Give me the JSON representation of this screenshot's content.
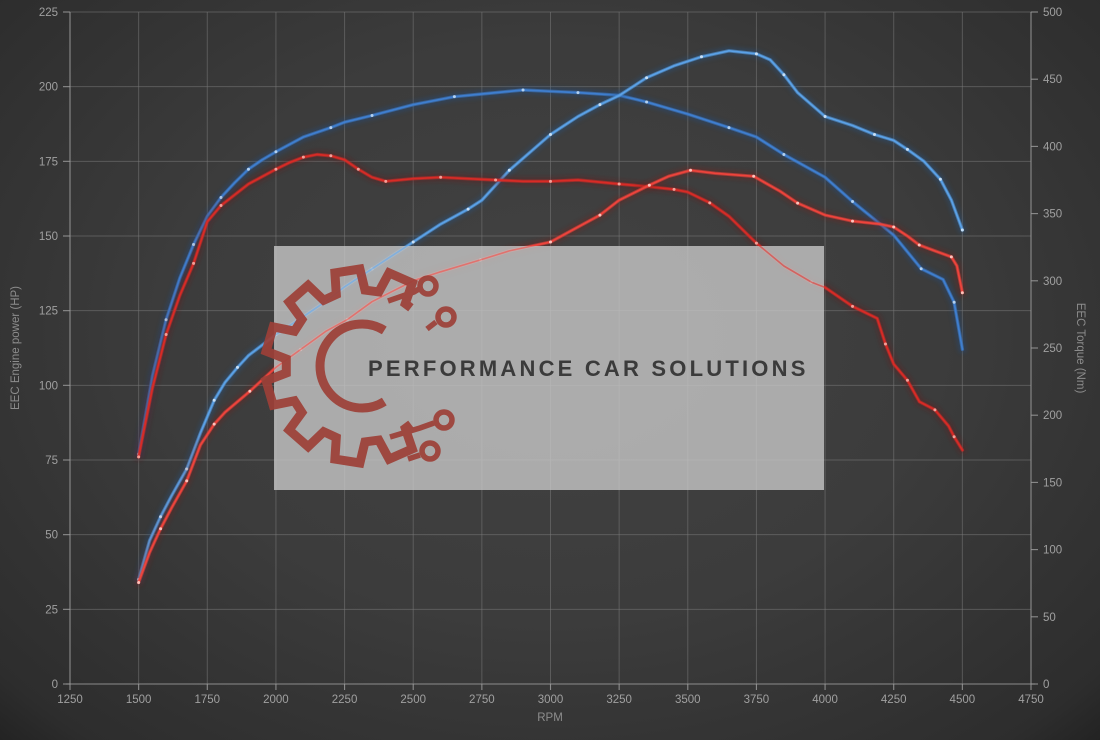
{
  "chart": {
    "x_axis": {
      "label": "RPM",
      "min": 1250,
      "max": 4750,
      "ticks": [
        1250,
        1500,
        1750,
        2000,
        2250,
        2500,
        2750,
        3000,
        3250,
        3500,
        3750,
        4000,
        4250,
        4500,
        4750
      ]
    },
    "y_left": {
      "label": "EEC Engine power (HP)",
      "min": 0,
      "max": 225,
      "ticks": [
        0,
        25,
        50,
        75,
        100,
        125,
        150,
        175,
        200,
        225
      ]
    },
    "y_right": {
      "label": "EEC Torque (Nm)",
      "min": 0,
      "max": 500,
      "ticks": [
        0,
        50,
        100,
        150,
        200,
        250,
        300,
        350,
        400,
        450,
        500
      ]
    }
  },
  "watermark": {
    "text": "PERFORMANCE CAR SOLUTIONS",
    "box_color": "#c7c7c7",
    "logo_color": "#9d4038"
  },
  "chart_data": {
    "type": "line",
    "title": "",
    "xlabel": "RPM",
    "ylabel_left": "EEC Engine power (HP)",
    "ylabel_right": "EEC Torque (Nm)",
    "x_range": [
      1250,
      4750
    ],
    "y_left_range": [
      0,
      225
    ],
    "y_right_range": [
      0,
      500
    ],
    "grid": true,
    "legend": "none",
    "series": [
      {
        "name": "torque-blue",
        "axis": "right",
        "unit": "Nm",
        "color": "#3f7fd0",
        "glow": "#1d4f8f",
        "dot": "#b9d6f2",
        "points": [
          [
            1500,
            171
          ],
          [
            1550,
            229
          ],
          [
            1600,
            271
          ],
          [
            1650,
            302
          ],
          [
            1700,
            327
          ],
          [
            1750,
            348
          ],
          [
            1800,
            362
          ],
          [
            1850,
            373
          ],
          [
            1900,
            383
          ],
          [
            1950,
            390
          ],
          [
            2000,
            396
          ],
          [
            2100,
            407
          ],
          [
            2200,
            414
          ],
          [
            2250,
            418
          ],
          [
            2350,
            423
          ],
          [
            2500,
            431
          ],
          [
            2650,
            437
          ],
          [
            2750,
            439
          ],
          [
            2900,
            442
          ],
          [
            3000,
            441
          ],
          [
            3100,
            440
          ],
          [
            3250,
            438
          ],
          [
            3350,
            433
          ],
          [
            3500,
            424
          ],
          [
            3650,
            414
          ],
          [
            3750,
            407
          ],
          [
            3850,
            394
          ],
          [
            4000,
            377
          ],
          [
            4100,
            359
          ],
          [
            4250,
            334
          ],
          [
            4350,
            309
          ],
          [
            4430,
            301
          ],
          [
            4470,
            284
          ],
          [
            4500,
            249
          ]
        ]
      },
      {
        "name": "power-blue",
        "axis": "left",
        "unit": "HP",
        "color": "#5ba2e8",
        "glow": "#24578f",
        "dot": "#cfe4f8",
        "points": [
          [
            1500,
            35
          ],
          [
            1540,
            48
          ],
          [
            1580,
            56
          ],
          [
            1620,
            63
          ],
          [
            1675,
            72
          ],
          [
            1725,
            84
          ],
          [
            1775,
            95
          ],
          [
            1815,
            101
          ],
          [
            1860,
            106
          ],
          [
            1900,
            110
          ],
          [
            2000,
            117
          ],
          [
            2100,
            123
          ],
          [
            2180,
            128
          ],
          [
            2250,
            133
          ],
          [
            2350,
            139
          ],
          [
            2450,
            145
          ],
          [
            2500,
            148
          ],
          [
            2600,
            154
          ],
          [
            2700,
            159
          ],
          [
            2750,
            162
          ],
          [
            2850,
            172
          ],
          [
            2950,
            180
          ],
          [
            3000,
            184
          ],
          [
            3100,
            190
          ],
          [
            3180,
            194
          ],
          [
            3250,
            197
          ],
          [
            3350,
            203
          ],
          [
            3450,
            207
          ],
          [
            3550,
            210
          ],
          [
            3650,
            212
          ],
          [
            3750,
            211
          ],
          [
            3800,
            209
          ],
          [
            3850,
            204
          ],
          [
            3900,
            198
          ],
          [
            4000,
            190
          ],
          [
            4100,
            187
          ],
          [
            4180,
            184
          ],
          [
            4250,
            182
          ],
          [
            4300,
            179
          ],
          [
            4360,
            175
          ],
          [
            4420,
            169
          ],
          [
            4460,
            162
          ],
          [
            4500,
            152
          ]
        ]
      },
      {
        "name": "torque-red",
        "axis": "right",
        "unit": "Nm",
        "color": "#d92b26",
        "glow": "#6e1714",
        "dot": "#f4a79e",
        "points": [
          [
            1500,
            169
          ],
          [
            1550,
            220
          ],
          [
            1600,
            260
          ],
          [
            1650,
            289
          ],
          [
            1700,
            313
          ],
          [
            1750,
            344
          ],
          [
            1800,
            356
          ],
          [
            1900,
            372
          ],
          [
            2000,
            383
          ],
          [
            2050,
            388
          ],
          [
            2100,
            392
          ],
          [
            2150,
            394
          ],
          [
            2200,
            393
          ],
          [
            2250,
            390
          ],
          [
            2300,
            383
          ],
          [
            2350,
            377
          ],
          [
            2400,
            374
          ],
          [
            2500,
            376
          ],
          [
            2600,
            377
          ],
          [
            2700,
            376
          ],
          [
            2800,
            375
          ],
          [
            2900,
            374
          ],
          [
            3000,
            374
          ],
          [
            3100,
            375
          ],
          [
            3250,
            372
          ],
          [
            3360,
            370
          ],
          [
            3450,
            368
          ],
          [
            3500,
            366
          ],
          [
            3580,
            358
          ],
          [
            3650,
            348
          ],
          [
            3750,
            328
          ],
          [
            3850,
            311
          ],
          [
            3950,
            299
          ],
          [
            4000,
            295
          ],
          [
            4100,
            281
          ],
          [
            4190,
            272
          ],
          [
            4220,
            253
          ],
          [
            4250,
            238
          ],
          [
            4300,
            226
          ],
          [
            4344,
            210
          ],
          [
            4400,
            204
          ],
          [
            4450,
            192
          ],
          [
            4470,
            184
          ],
          [
            4500,
            174
          ]
        ]
      },
      {
        "name": "power-red",
        "axis": "left",
        "unit": "HP",
        "color": "#ef443c",
        "glow": "#7d1b17",
        "dot": "#ffc9c2",
        "points": [
          [
            1500,
            34
          ],
          [
            1540,
            44
          ],
          [
            1580,
            52
          ],
          [
            1620,
            59
          ],
          [
            1675,
            68
          ],
          [
            1725,
            80
          ],
          [
            1775,
            87
          ],
          [
            1815,
            91
          ],
          [
            1905,
            98
          ],
          [
            2000,
            106
          ],
          [
            2090,
            112
          ],
          [
            2180,
            118
          ],
          [
            2260,
            122
          ],
          [
            2350,
            128
          ],
          [
            2500,
            135
          ],
          [
            2600,
            138
          ],
          [
            2745,
            142
          ],
          [
            2850,
            145
          ],
          [
            3000,
            148
          ],
          [
            3100,
            153
          ],
          [
            3180,
            157
          ],
          [
            3250,
            162
          ],
          [
            3360,
            167
          ],
          [
            3430,
            170
          ],
          [
            3510,
            172
          ],
          [
            3600,
            171
          ],
          [
            3740,
            170
          ],
          [
            3836,
            165
          ],
          [
            3900,
            161
          ],
          [
            4000,
            157
          ],
          [
            4100,
            155
          ],
          [
            4200,
            154
          ],
          [
            4250,
            153
          ],
          [
            4300,
            150
          ],
          [
            4343,
            147
          ],
          [
            4400,
            145
          ],
          [
            4460,
            143
          ],
          [
            4480,
            140
          ],
          [
            4500,
            131
          ]
        ]
      }
    ]
  }
}
